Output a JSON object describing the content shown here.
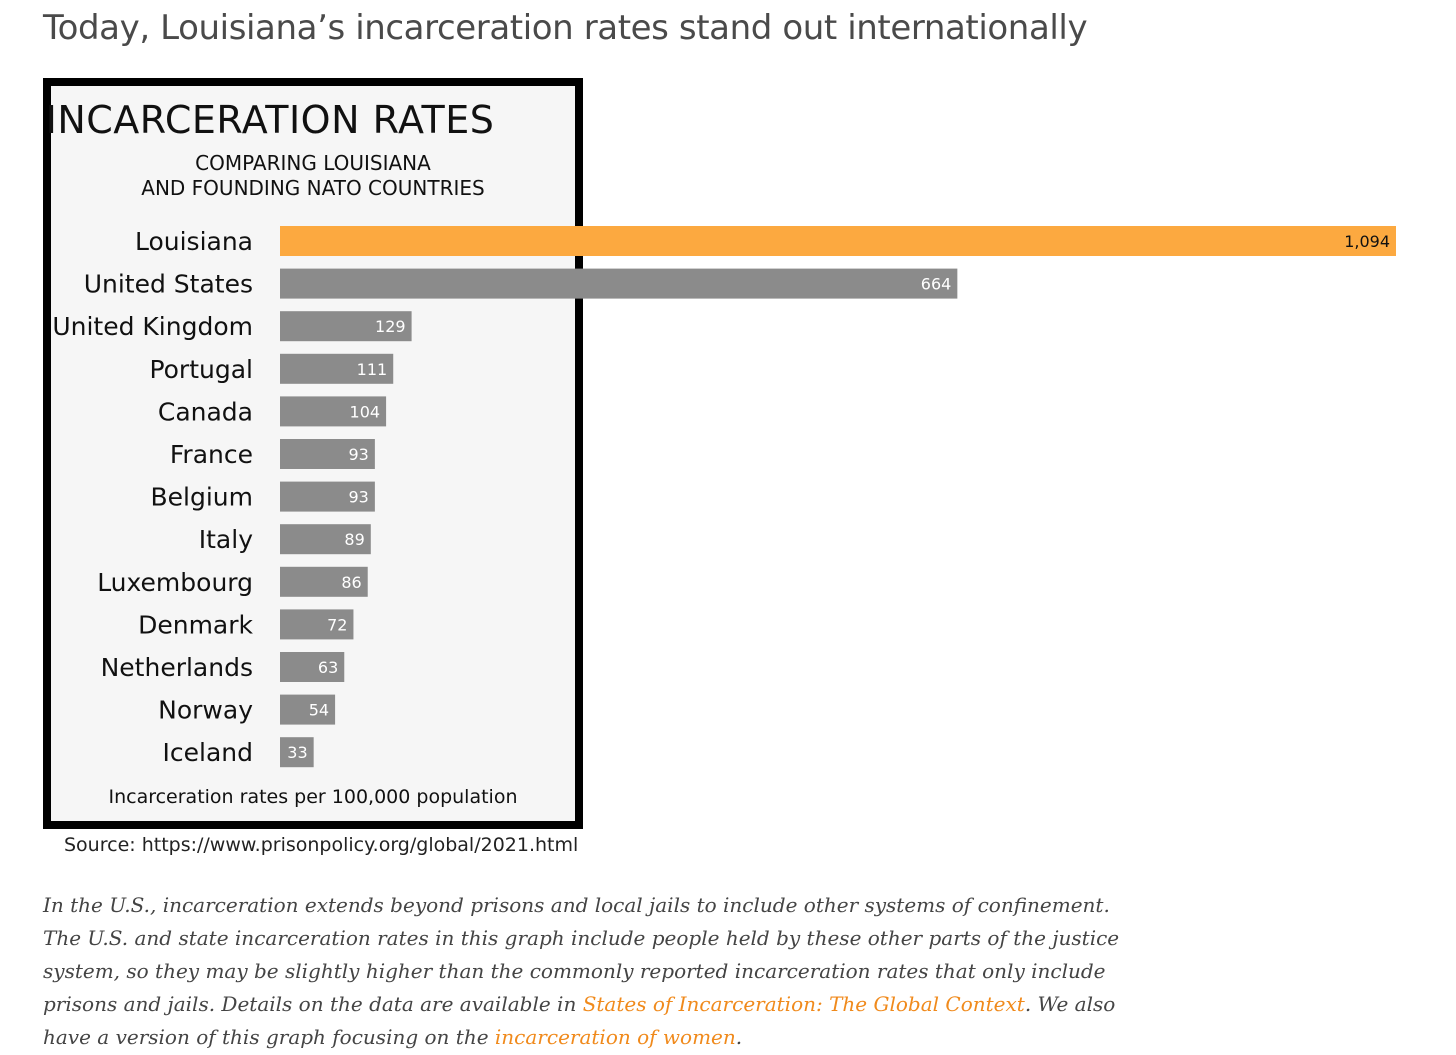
{
  "heading": "Today, Louisiana’s incarceration rates stand out internationally",
  "colors": {
    "highlight_bar": "#fca940",
    "default_bar": "#8b8b8b",
    "link": "#f08a1c",
    "frame_border": "#000000",
    "frame_background": "#f6f6f6"
  },
  "chart_data": {
    "type": "bar",
    "orientation": "horizontal",
    "title": "INCARCERATION RATES",
    "subtitle_lines": [
      "COMPARING LOUISIANA",
      "AND FOUNDING NATO COUNTRIES"
    ],
    "xlabel": "Incarceration rates per 100,000 population",
    "ylabel": "",
    "categories": [
      "Louisiana",
      "United States",
      "United Kingdom",
      "Portugal",
      "Canada",
      "France",
      "Belgium",
      "Italy",
      "Luxembourg",
      "Denmark",
      "Netherlands",
      "Norway",
      "Iceland"
    ],
    "values": [
      1094,
      664,
      129,
      111,
      104,
      93,
      93,
      89,
      86,
      72,
      63,
      54,
      33
    ],
    "value_labels": [
      "1,094",
      "664",
      "129",
      "111",
      "104",
      "93",
      "93",
      "89",
      "86",
      "72",
      "63",
      "54",
      "33"
    ],
    "highlight_category": "Louisiana",
    "xlim": [
      0,
      1094
    ],
    "grid": false,
    "legend": "none"
  },
  "source": "Source: https://www.prisonpolicy.org/global/2021.html",
  "caption": {
    "text_1": "In the U.S., incarceration extends beyond prisons and local jails to include other systems of confinement. The U.S. and state incarceration rates in this graph include people held by these other parts of the justice system, so they may be slightly higher than the commonly reported incarceration rates that only include prisons and jails. Details on the data are available in ",
    "link_1": "States of Incarceration: The Global Context",
    "text_2": ". We also have a version of this graph focusing on the ",
    "link_2": "incarceration of women",
    "text_3": "."
  }
}
